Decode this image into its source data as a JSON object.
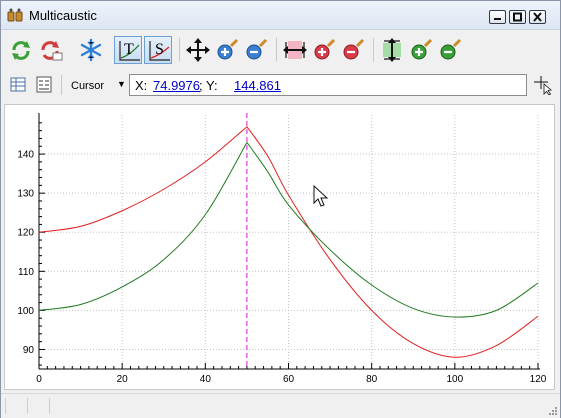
{
  "window": {
    "title": "Multicaustic"
  },
  "toolbar": {
    "buttons": [
      {
        "name": "refresh-icon",
        "active": false
      },
      {
        "name": "reset-icon",
        "active": false
      },
      {
        "name": "freeze-icon",
        "active": false
      },
      {
        "name": "show-t-icon",
        "active": true
      },
      {
        "name": "show-s-icon",
        "active": true
      },
      {
        "name": "move-all-icon",
        "active": false
      },
      {
        "name": "zoom-in-all-icon",
        "active": false
      },
      {
        "name": "zoom-out-all-icon",
        "active": false
      },
      {
        "name": "move-horizontal-icon",
        "active": false
      },
      {
        "name": "zoom-in-horizontal-icon",
        "active": false
      },
      {
        "name": "zoom-out-horizontal-icon",
        "active": false
      },
      {
        "name": "move-vertical-icon",
        "active": false
      },
      {
        "name": "zoom-in-vertical-icon",
        "active": false
      },
      {
        "name": "zoom-out-vertical-icon",
        "active": false
      }
    ],
    "t_letter": "T",
    "s_letter": "S"
  },
  "cursor_bar": {
    "mode_label": "Cursor",
    "x_label": "X: ",
    "x_value": "74.9976",
    "sep": "; Y: ",
    "y_value": "144.861"
  },
  "chart_data": {
    "type": "line",
    "xlim": [
      0,
      120
    ],
    "ylim": [
      85,
      150
    ],
    "xticks": [
      0,
      20,
      40,
      60,
      80,
      100,
      120
    ],
    "yticks": [
      90,
      100,
      110,
      120,
      130,
      140
    ],
    "grid": true,
    "marker_x": 50,
    "colors": {
      "red": "#e02020",
      "green": "#217a21",
      "marker": "#e040e0"
    },
    "series": [
      {
        "color": "#e02020",
        "x": [
          0,
          10,
          20,
          30,
          40,
          50,
          55,
          60,
          70,
          80,
          90,
          100,
          110,
          120
        ],
        "y": [
          120,
          121.5,
          125.5,
          131,
          138,
          147,
          139.5,
          129.5,
          113,
          100,
          91.5,
          88,
          91,
          98.5
        ]
      },
      {
        "color": "#217a21",
        "x": [
          0,
          10,
          20,
          30,
          40,
          50,
          55,
          60,
          70,
          80,
          90,
          100,
          110,
          120
        ],
        "y": [
          100,
          101.5,
          106,
          113,
          124.5,
          143,
          135.5,
          127,
          115.5,
          106.5,
          100.5,
          98.3,
          100,
          107
        ]
      }
    ]
  }
}
